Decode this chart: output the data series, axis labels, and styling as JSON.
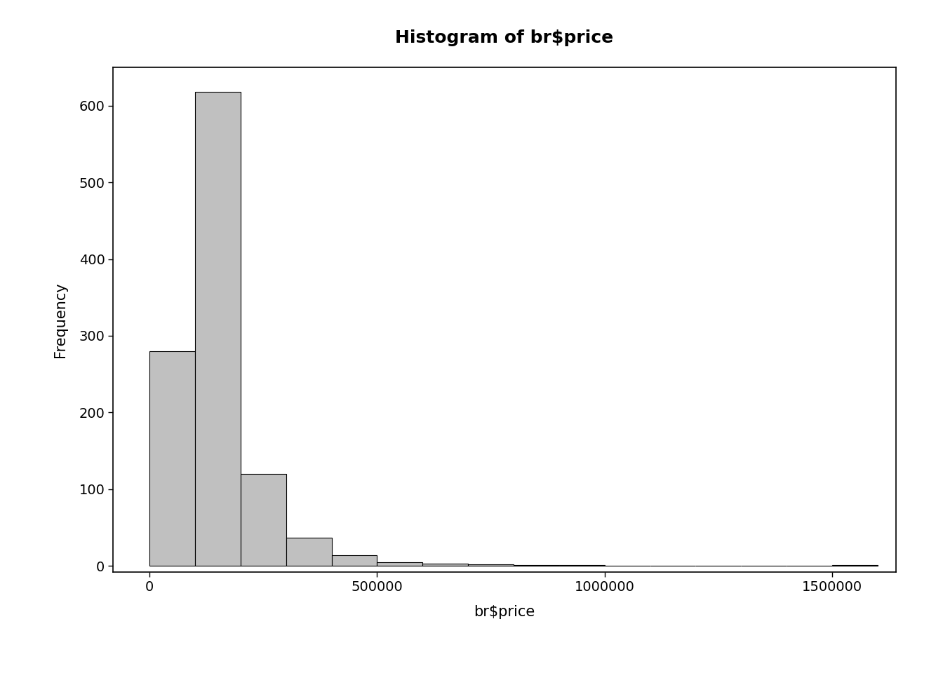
{
  "title": "Histogram of br$price",
  "xlabel": "br$price",
  "ylabel": "Frequency",
  "bar_color": "#c0c0c0",
  "bar_edgecolor": "#000000",
  "xlim": [
    -80000,
    1640000
  ],
  "ylim": [
    -8,
    650
  ],
  "yticks": [
    0,
    100,
    200,
    300,
    400,
    500,
    600
  ],
  "xticks": [
    0,
    500000,
    1000000,
    1500000
  ],
  "xticklabels": [
    "0",
    "500000",
    "1000000",
    "1500000"
  ],
  "bin_edges": [
    0,
    100000,
    200000,
    300000,
    400000,
    500000,
    600000,
    700000,
    800000,
    900000,
    1000000,
    1100000,
    1200000,
    1300000,
    1400000,
    1500000,
    1600000
  ],
  "frequencies": [
    280,
    618,
    120,
    37,
    14,
    5,
    3,
    2,
    1,
    1,
    0,
    0,
    0,
    0,
    0,
    1
  ],
  "background_color": "#ffffff",
  "title_fontsize": 18,
  "axis_fontsize": 15,
  "tick_fontsize": 14,
  "title_fontweight": "bold"
}
